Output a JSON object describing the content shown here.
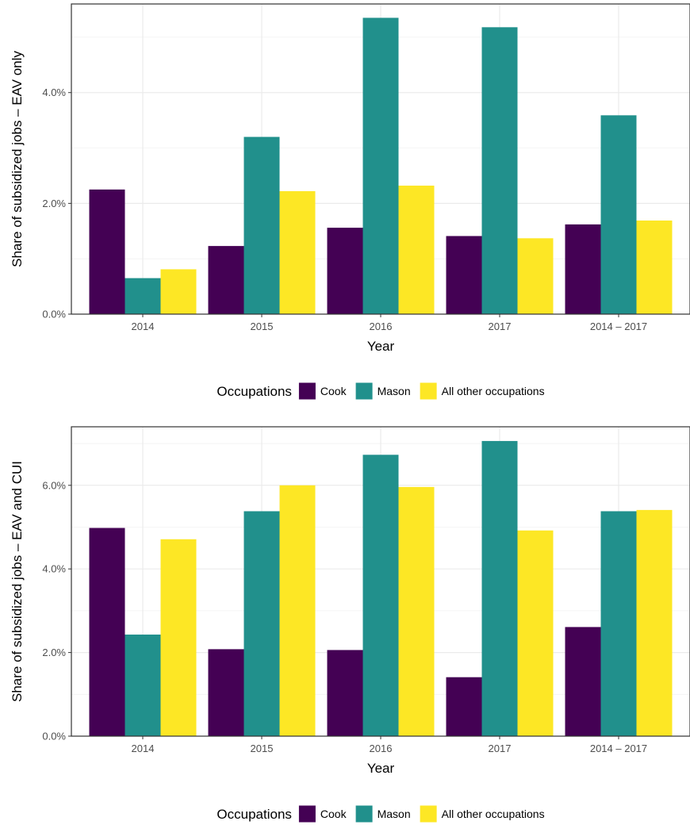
{
  "chart_data": [
    {
      "type": "bar",
      "categories": [
        "2014",
        "2015",
        "2016",
        "2017",
        "2014 – 2017"
      ],
      "series": [
        {
          "name": "Cook",
          "color": "#440154",
          "values": [
            2.25,
            1.23,
            1.56,
            1.41,
            1.62
          ]
        },
        {
          "name": "Mason",
          "color": "#21908C",
          "values": [
            0.65,
            3.2,
            5.35,
            5.18,
            3.59
          ]
        },
        {
          "name": "All other occupations",
          "color": "#FDE725",
          "values": [
            0.81,
            2.22,
            2.32,
            1.37,
            1.69
          ]
        }
      ],
      "xlabel": "Year",
      "ylabel": "Share of subsidized jobs – EAV only",
      "ylim": [
        0,
        5.6
      ],
      "yticks": [
        0,
        2,
        4
      ],
      "ytick_labels": [
        "0.0%",
        "2.0%",
        "4.0%"
      ],
      "grid": true,
      "legend_title": "Occupations",
      "legend_position": "bottom"
    },
    {
      "type": "bar",
      "categories": [
        "2014",
        "2015",
        "2016",
        "2017",
        "2014 – 2017"
      ],
      "series": [
        {
          "name": "Cook",
          "color": "#440154",
          "values": [
            4.98,
            2.08,
            2.06,
            1.41,
            2.61
          ]
        },
        {
          "name": "Mason",
          "color": "#21908C",
          "values": [
            2.43,
            5.38,
            6.73,
            7.06,
            5.38
          ]
        },
        {
          "name": "All other occupations",
          "color": "#FDE725",
          "values": [
            4.71,
            6.0,
            5.96,
            4.92,
            5.41
          ]
        }
      ],
      "xlabel": "Year",
      "ylabel": "Share of subsidized jobs – EAV and CUI",
      "ylim": [
        0,
        7.4
      ],
      "yticks": [
        0,
        2,
        4,
        6
      ],
      "ytick_labels": [
        "0.0%",
        "2.0%",
        "4.0%",
        "6.0%"
      ],
      "grid": true,
      "legend_title": "Occupations",
      "legend_position": "bottom"
    }
  ]
}
